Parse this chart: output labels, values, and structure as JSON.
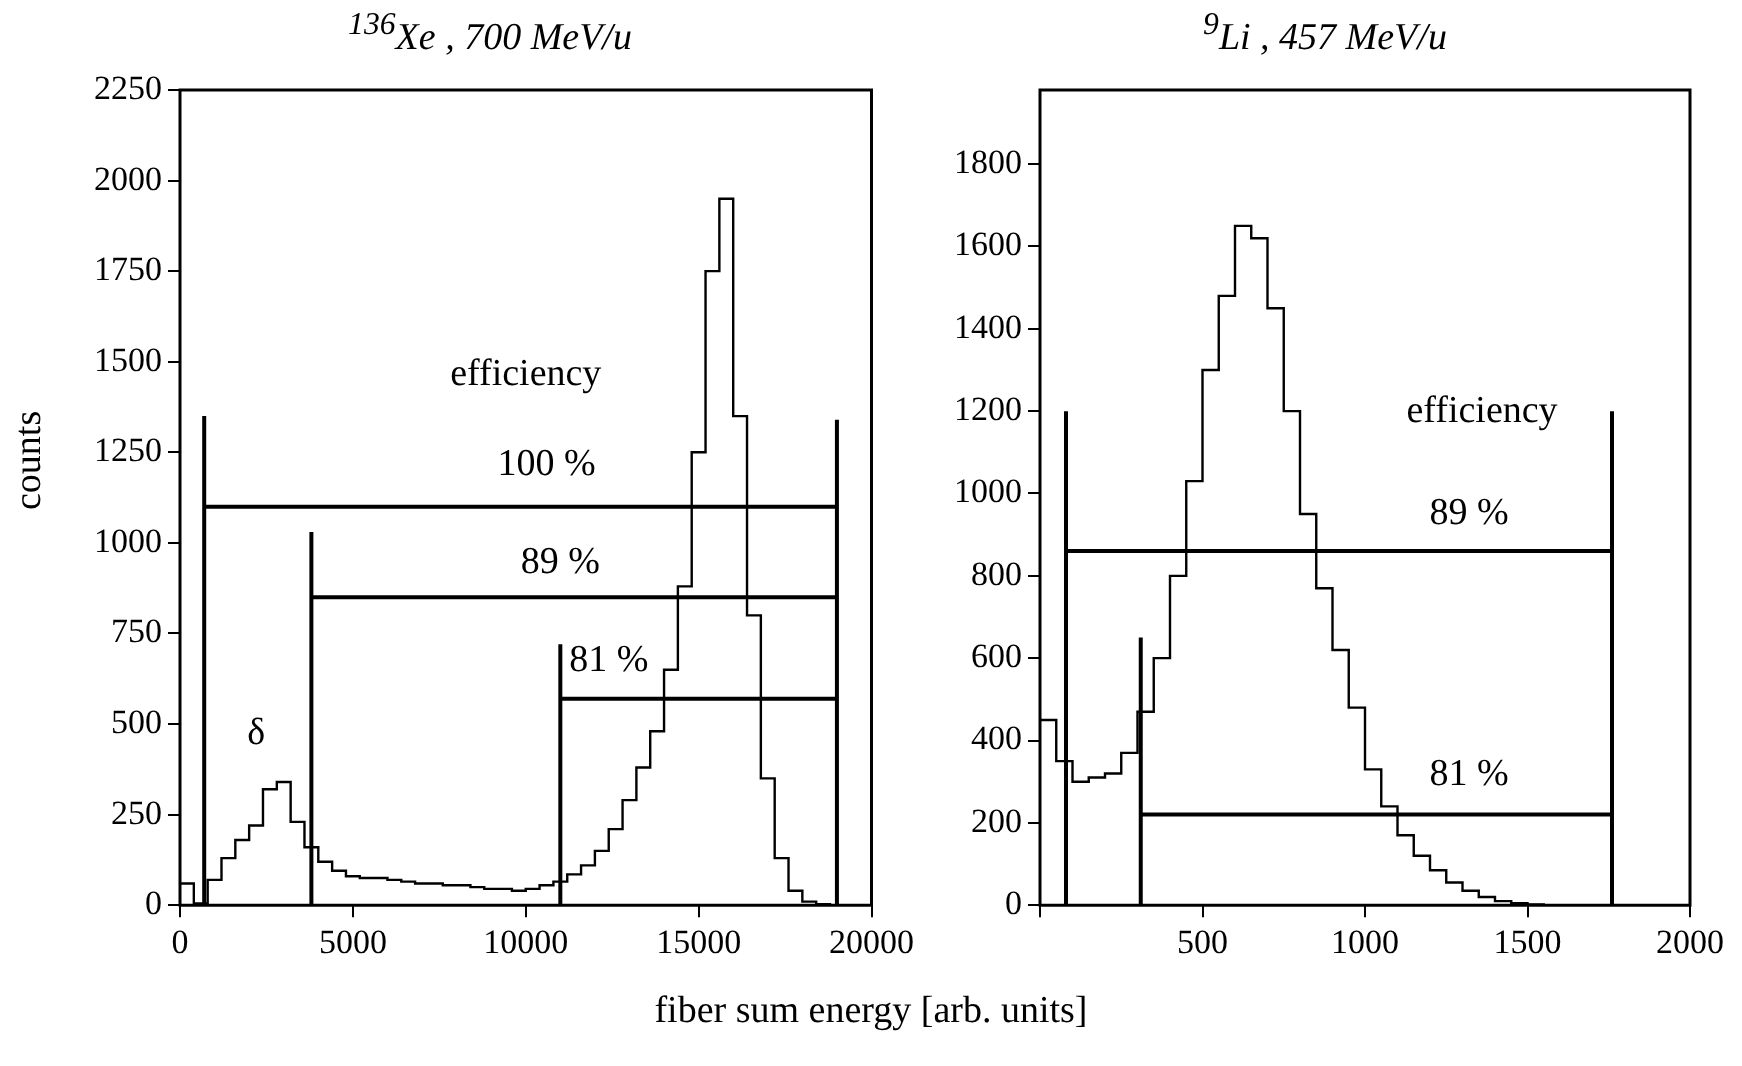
{
  "chart_data": [
    {
      "type": "histogram",
      "title": "$^{136}$Xe , 700 MeV/u",
      "xlabel": "fiber sum energy [arb. units]",
      "ylabel": "counts",
      "color": "#000000",
      "bins": [
        0,
        400,
        800,
        1200,
        1600,
        2000,
        2400,
        2800,
        3200,
        3600,
        4000,
        4400,
        4800,
        5200,
        5600,
        6000,
        6400,
        6800,
        7200,
        7600,
        8000,
        8400,
        8800,
        9200,
        9600,
        10000,
        10400,
        10800,
        11200,
        11600,
        12000,
        12400,
        12800,
        13200,
        13600,
        14000,
        14400,
        14800,
        15200,
        15600,
        16000,
        16400,
        16800,
        17200,
        17600,
        18000,
        18400,
        18800,
        19200,
        19600,
        20000
      ],
      "values": [
        60,
        5,
        70,
        130,
        180,
        220,
        320,
        340,
        230,
        160,
        120,
        95,
        80,
        75,
        75,
        70,
        65,
        60,
        60,
        55,
        55,
        50,
        45,
        45,
        40,
        45,
        55,
        65,
        85,
        110,
        150,
        210,
        290,
        380,
        480,
        650,
        880,
        1250,
        1750,
        1950,
        1350,
        800,
        350,
        130,
        40,
        10,
        3,
        0,
        0,
        0
      ],
      "series": [
        {
          "type": "line",
          "color": "#000000",
          "x": [
            700,
            700
          ],
          "values": [
            0,
            1350
          ]
        },
        {
          "type": "line",
          "color": "#000000",
          "x": [
            3800,
            3800
          ],
          "values": [
            0,
            1030
          ]
        },
        {
          "type": "line",
          "color": "#000000",
          "x": [
            11000,
            11000
          ],
          "values": [
            0,
            720
          ]
        },
        {
          "type": "line",
          "color": "#000000",
          "x": [
            19000,
            19000
          ],
          "values": [
            0,
            1340
          ]
        },
        {
          "type": "line",
          "color": "#000000",
          "x": [
            700,
            19000
          ],
          "values": [
            1100,
            1100
          ]
        },
        {
          "type": "line",
          "color": "#000000",
          "x": [
            3800,
            19000
          ],
          "values": [
            850,
            850
          ]
        },
        {
          "type": "line",
          "color": "#000000",
          "x": [
            11000,
            19000
          ],
          "values": [
            570,
            570
          ]
        }
      ],
      "annotations": [
        "efficiency",
        "100 %",
        "89 %",
        "81 %",
        "δ"
      ],
      "xlim": [
        0,
        20000
      ],
      "ylim": [
        0,
        2250
      ],
      "xticks": [
        0,
        5000,
        10000,
        15000,
        20000
      ],
      "yticks": [
        0,
        250,
        500,
        750,
        1000,
        1250,
        1500,
        1750,
        2000,
        2250
      ],
      "grid": false,
      "legend": false
    },
    {
      "type": "histogram",
      "title": "$^{9}$Li , 457 MeV/u",
      "color": "#000000",
      "bins": [
        0,
        50,
        100,
        150,
        200,
        250,
        300,
        350,
        400,
        450,
        500,
        550,
        600,
        650,
        700,
        750,
        800,
        850,
        900,
        950,
        1000,
        1050,
        1100,
        1150,
        1200,
        1250,
        1300,
        1350,
        1400,
        1450,
        1500,
        1550,
        1600,
        1650,
        1700,
        1750,
        1800,
        1850,
        1900,
        1950,
        2000
      ],
      "values": [
        450,
        350,
        300,
        310,
        320,
        370,
        470,
        600,
        800,
        1030,
        1300,
        1480,
        1650,
        1620,
        1450,
        1200,
        950,
        770,
        620,
        480,
        330,
        240,
        170,
        120,
        85,
        55,
        35,
        20,
        10,
        5,
        2,
        0,
        0,
        0,
        0,
        0,
        0,
        0,
        0,
        0
      ],
      "series": [
        {
          "type": "line",
          "color": "#000000",
          "x": [
            80,
            80
          ],
          "values": [
            0,
            1200
          ]
        },
        {
          "type": "line",
          "color": "#000000",
          "x": [
            310,
            310
          ],
          "values": [
            0,
            650
          ]
        },
        {
          "type": "line",
          "color": "#000000",
          "x": [
            1760,
            1760
          ],
          "values": [
            0,
            1200
          ]
        },
        {
          "type": "line",
          "color": "#000000",
          "x": [
            80,
            1760
          ],
          "values": [
            860,
            860
          ]
        },
        {
          "type": "line",
          "color": "#000000",
          "x": [
            310,
            1760
          ],
          "values": [
            220,
            220
          ]
        }
      ],
      "annotations": [
        "efficiency",
        "89 %",
        "81 %"
      ],
      "xlim": [
        0,
        2000
      ],
      "ylim": [
        0,
        1980
      ],
      "xticks": [
        {
          "value": 0,
          "label": null
        },
        500,
        1000,
        1500,
        2000
      ],
      "yticks": [
        0,
        200,
        400,
        600,
        800,
        1000,
        1200,
        1400,
        1600,
        1800
      ],
      "grid": false,
      "legend": false
    }
  ]
}
